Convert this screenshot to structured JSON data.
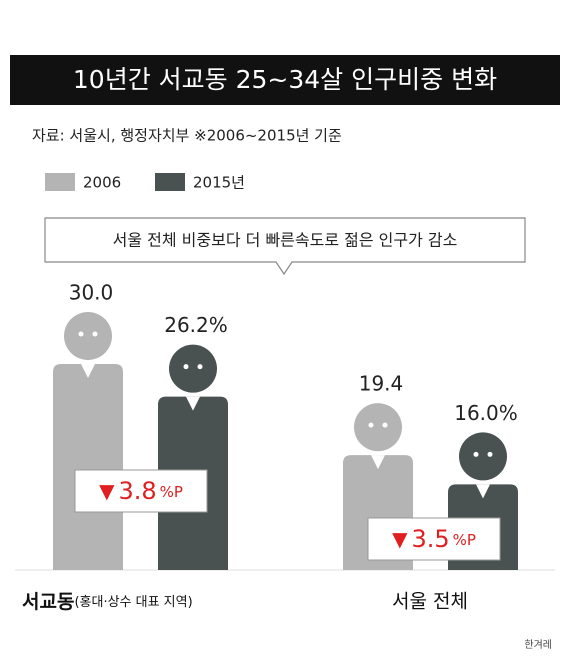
{
  "chart_data": {
    "type": "figure-bar",
    "title": "10년간 서교동 25~34살 인구비중 변화",
    "source": "자료: 서울시, 행정자치부  ※2006~2015년 기준",
    "callout": "서울 전체 비중보다 더 빠른속도로 젊은 인구가 감소",
    "categories": [
      "서교동",
      "서울 전체"
    ],
    "category_notes": [
      "(홍대·상수 대표 지역)",
      null
    ],
    "series": [
      {
        "name": "2006",
        "color": "#b4b4b4",
        "values": [
          30.0,
          19.4
        ],
        "value_labels": [
          "30.0",
          "19.4"
        ]
      },
      {
        "name": "2015년",
        "color": "#4a5251",
        "values": [
          26.2,
          16.0
        ],
        "value_labels": [
          "26.2%",
          "16.0%"
        ]
      }
    ],
    "annotations": [
      {
        "arrow": "▼",
        "value": "3.8",
        "unit": "%P"
      },
      {
        "arrow": "▼",
        "value": "3.5",
        "unit": "%P"
      }
    ],
    "credit": "한겨레"
  }
}
